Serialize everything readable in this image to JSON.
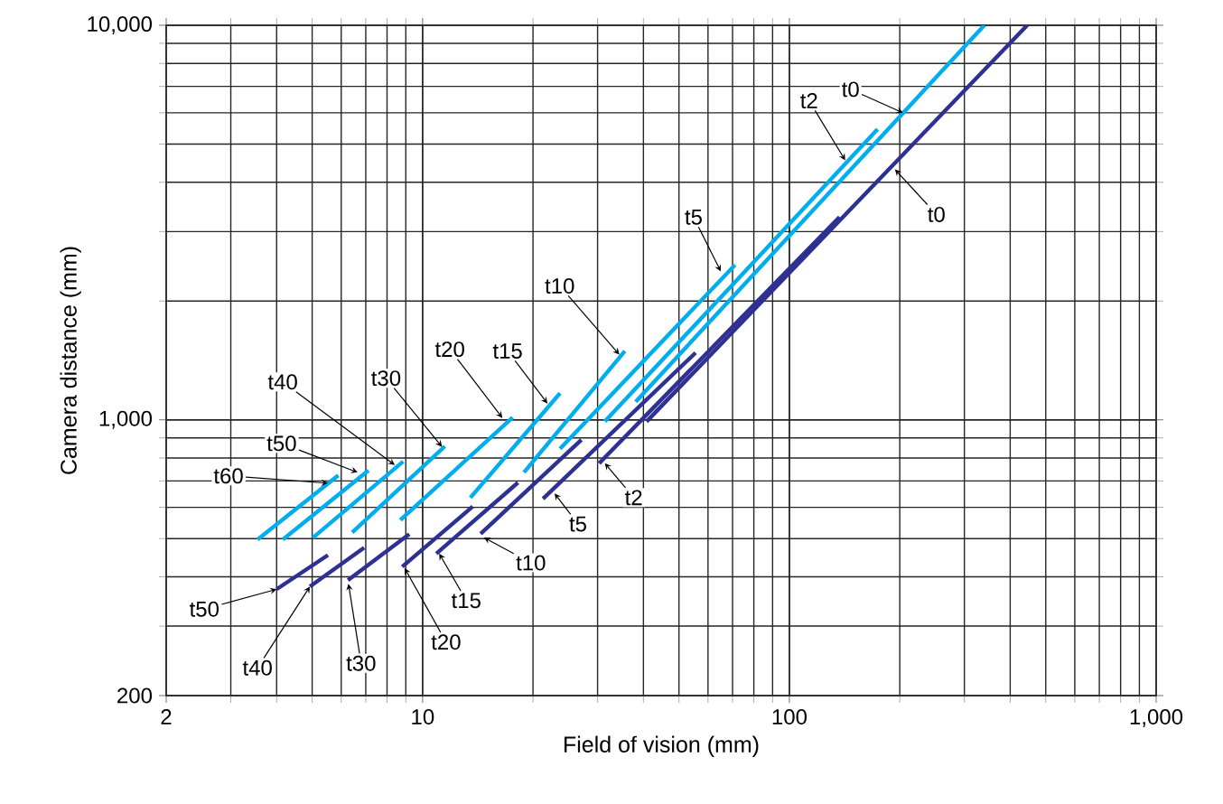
{
  "chart_data": {
    "type": "line",
    "xlabel": "Field of vision (mm)",
    "ylabel": "Camera distance (mm)",
    "log": "xy",
    "grid": true,
    "xlim": [
      2,
      1000
    ],
    "ylim": [
      200,
      10000
    ],
    "xticks": [
      2,
      10,
      100,
      {
        "value": 1000,
        "label": "1,000"
      }
    ],
    "yticks": [
      200,
      {
        "value": 1000,
        "label": "1,000"
      },
      {
        "value": 10000,
        "label": "10,000"
      }
    ],
    "series": [
      {
        "color": "#2e3192",
        "x": [
          40.8,
          445
        ],
        "values": [
          990,
          10000
        ]
      },
      {
        "color": "#2e3192",
        "x": [
          30.3,
          137
        ],
        "values": [
          776,
          3265
        ]
      },
      {
        "color": "#2e3192",
        "x": [
          21.3,
          55.5
        ],
        "values": [
          631,
          1479
        ]
      },
      {
        "color": "#2e3192",
        "x": [
          14.4,
          27.1
        ],
        "values": [
          514,
          890
        ]
      },
      {
        "color": "#2e3192",
        "x": [
          10.9,
          18.2
        ],
        "values": [
          458,
          693
        ]
      },
      {
        "color": "#2e3192",
        "x": [
          8.8,
          13.7
        ],
        "values": [
          424,
          603
        ]
      },
      {
        "color": "#2e3192",
        "x": [
          6.26,
          9.2
        ],
        "values": [
          392,
          513
        ]
      },
      {
        "color": "#2e3192",
        "x": [
          4.93,
          6.93
        ],
        "values": [
          378,
          474
        ]
      },
      {
        "color": "#2e3192",
        "x": [
          4.0,
          5.52
        ],
        "values": [
          372,
          454
        ]
      },
      {
        "color": "#00aeef",
        "x": [
          38.1,
          340
        ],
        "values": [
          1111,
          10000
        ]
      },
      {
        "color": "#00aeef",
        "x": [
          31.4,
          174
        ],
        "values": [
          990,
          5450
        ]
      },
      {
        "color": "#00aeef",
        "x": [
          23.7,
          71.1
        ],
        "values": [
          845,
          2470
        ]
      },
      {
        "color": "#00aeef",
        "x": [
          18.9,
          35.6
        ],
        "values": [
          736,
          1494
        ]
      },
      {
        "color": "#00aeef",
        "x": [
          13.5,
          23.7
        ],
        "values": [
          635,
          1168
        ]
      },
      {
        "color": "#00aeef",
        "x": [
          8.7,
          17.6
        ],
        "values": [
          557,
          1014
        ]
      },
      {
        "color": "#00aeef",
        "x": [
          6.43,
          11.5
        ],
        "values": [
          518,
          857
        ]
      },
      {
        "color": "#00aeef",
        "x": [
          5.02,
          8.85
        ],
        "values": [
          502,
          784
        ]
      },
      {
        "color": "#00aeef",
        "x": [
          4.16,
          7.12
        ],
        "values": [
          497,
          744
        ]
      },
      {
        "color": "#00aeef",
        "x": [
          3.55,
          5.89
        ],
        "values": [
          497,
          723
        ]
      }
    ],
    "annotations": [
      {
        "text": "t0",
        "x": 204,
        "y": 6000
      },
      {
        "text": "t2",
        "x": 142,
        "y": 4547
      },
      {
        "text": "t5",
        "x": 65,
        "y": 2378
      },
      {
        "text": "t10",
        "x": 34.4,
        "y": 1463
      },
      {
        "text": "t20",
        "x": 16.5,
        "y": 1011
      },
      {
        "text": "t15",
        "x": 21.9,
        "y": 1100
      },
      {
        "text": "t30",
        "x": 11.3,
        "y": 854
      },
      {
        "text": "t40",
        "x": 8.4,
        "y": 768
      },
      {
        "text": "t50",
        "x": 6.65,
        "y": 736
      },
      {
        "text": "t60",
        "x": 5.52,
        "y": 691
      },
      {
        "text": "t0",
        "x": 194,
        "y": 4315
      },
      {
        "text": "t2",
        "x": 31.4,
        "y": 776
      },
      {
        "text": "t5",
        "x": 22.9,
        "y": 651
      },
      {
        "text": "t10",
        "x": 14.7,
        "y": 503
      },
      {
        "text": "t15",
        "x": 11.1,
        "y": 458
      },
      {
        "text": "t20",
        "x": 8.93,
        "y": 421
      },
      {
        "text": "t30",
        "x": 6.28,
        "y": 384
      },
      {
        "text": "t40",
        "x": 4.93,
        "y": 378
      },
      {
        "text": "t50",
        "x": 4.0,
        "y": 372
      }
    ]
  }
}
